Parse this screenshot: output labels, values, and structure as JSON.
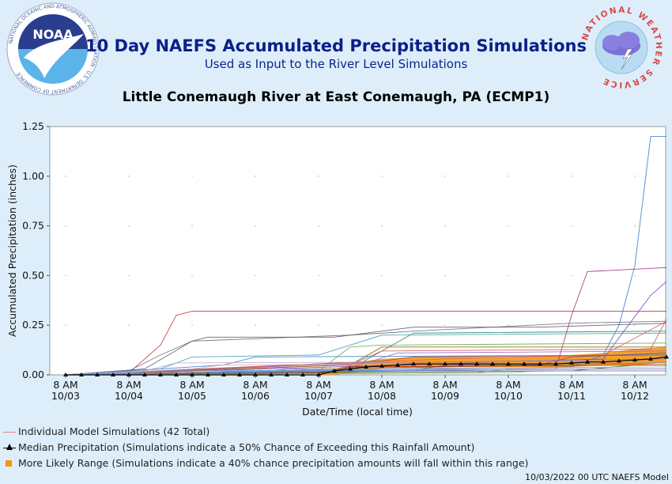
{
  "header": {
    "title": "10 Day NAEFS Accumulated Precipitation Simulations",
    "subtitle": "Used as Input to the River Level Simulations",
    "location": "Little Conemaugh River at East Conemaugh, PA (ECMP1)"
  },
  "logos": {
    "noaa_text": "NOAA",
    "noaa_ring_text": "NATIONAL OCEANIC AND ATMOSPHERIC ADMINISTRATION · U.S. DEPARTMENT OF COMMERCE",
    "nws_ring_text": "NATIONAL WEATHER SERVICE"
  },
  "legend": {
    "individual": "Individual Model Simulations (42 Total)",
    "median": "Median Precipitation (Simulations indicate a 50% Chance of Exceeding this Rainfall Amount)",
    "range": "More Likely Range (Simulations indicate a 40% chance precipitation amounts will fall within this range)"
  },
  "footer": "10/03/2022 00 UTC NAEFS Model",
  "colors": {
    "background": "#ddeefa",
    "title": "#0b1f8a",
    "range_fill": "#f5960f",
    "median": "#000000",
    "individual_legend": "#e08a8a"
  },
  "chart_data": {
    "type": "line",
    "xlabel": "Date/Time (local time)",
    "ylabel": "Accumulated Precipitation (inches)",
    "ylim": [
      0,
      1.25
    ],
    "yticks": [
      0.0,
      0.25,
      0.5,
      0.75,
      1.0,
      1.25
    ],
    "ytick_labels": [
      "0.00",
      "0.25",
      "0.50",
      "0.75",
      "1.00",
      "1.25"
    ],
    "xlim": [
      0,
      9.5
    ],
    "xticks": [
      0,
      1,
      2,
      3,
      4,
      5,
      6,
      7,
      8,
      9
    ],
    "xtick_labels": [
      [
        "8 AM",
        "10/03"
      ],
      [
        "8 AM",
        "10/04"
      ],
      [
        "8 AM",
        "10/05"
      ],
      [
        "8 AM",
        "10/06"
      ],
      [
        "8 AM",
        "10/07"
      ],
      [
        "8 AM",
        "10/08"
      ],
      [
        "8 AM",
        "10/09"
      ],
      [
        "8 AM",
        "10/10"
      ],
      [
        "8 AM",
        "10/11"
      ],
      [
        "8 AM",
        "10/12"
      ]
    ],
    "grid": "dotted",
    "range_band": {
      "x": [
        4.0,
        4.25,
        4.5,
        4.75,
        5.0,
        5.5,
        6.0,
        6.5,
        7.0,
        7.5,
        8.0,
        8.5,
        9.0,
        9.5
      ],
      "low": [
        0.0,
        0.0,
        0.01,
        0.02,
        0.03,
        0.04,
        0.04,
        0.04,
        0.04,
        0.04,
        0.04,
        0.05,
        0.05,
        0.06
      ],
      "high": [
        0.01,
        0.03,
        0.05,
        0.07,
        0.08,
        0.09,
        0.09,
        0.09,
        0.09,
        0.09,
        0.1,
        0.11,
        0.13,
        0.14
      ]
    },
    "median": {
      "x": [
        0,
        0.25,
        0.5,
        0.75,
        1.0,
        1.25,
        1.5,
        1.75,
        2.0,
        2.25,
        2.5,
        2.75,
        3.0,
        3.25,
        3.5,
        3.75,
        4.0,
        4.25,
        4.5,
        4.75,
        5.0,
        5.25,
        5.5,
        5.75,
        6.0,
        6.25,
        6.5,
        6.75,
        7.0,
        7.25,
        7.5,
        7.75,
        8.0,
        8.25,
        8.5,
        8.75,
        9.0,
        9.25,
        9.5
      ],
      "y": [
        0,
        0,
        0,
        0,
        0,
        0,
        0,
        0,
        0,
        0,
        0,
        0,
        0,
        0,
        0,
        0,
        0.0,
        0.02,
        0.03,
        0.04,
        0.045,
        0.05,
        0.055,
        0.055,
        0.055,
        0.055,
        0.055,
        0.055,
        0.055,
        0.055,
        0.055,
        0.055,
        0.06,
        0.065,
        0.065,
        0.07,
        0.075,
        0.08,
        0.09
      ]
    },
    "series": [
      {
        "color": "#c23a3a",
        "x": [
          0,
          1.0,
          1.5,
          1.75,
          2.0,
          9.5
        ],
        "y": [
          0,
          0.01,
          0.15,
          0.3,
          0.32,
          0.32
        ]
      },
      {
        "color": "#3c78d8",
        "x": [
          0,
          8.0,
          8.5,
          8.75,
          9.0,
          9.25,
          9.5
        ],
        "y": [
          0,
          0.04,
          0.1,
          0.25,
          0.55,
          1.2,
          1.2
        ]
      },
      {
        "color": "#a03080",
        "x": [
          0,
          7.75,
          8.0,
          8.25,
          9.5
        ],
        "y": [
          0,
          0.03,
          0.3,
          0.52,
          0.54
        ]
      },
      {
        "color": "#8040c0",
        "x": [
          0,
          8.5,
          9.25,
          9.5
        ],
        "y": [
          0,
          0.08,
          0.4,
          0.47
        ]
      },
      {
        "color": "#707070",
        "x": [
          0,
          1.0,
          1.5,
          2.0,
          4.5,
          5.5,
          8.0,
          9.5
        ],
        "y": [
          0,
          0.02,
          0.1,
          0.17,
          0.2,
          0.22,
          0.26,
          0.27
        ]
      },
      {
        "color": "#555577",
        "x": [
          0,
          1.25,
          2.0,
          2.25,
          4.25,
          5.5,
          7.5,
          9.5
        ],
        "y": [
          0,
          0.03,
          0.17,
          0.19,
          0.19,
          0.24,
          0.24,
          0.26
        ]
      },
      {
        "color": "#6aa84f",
        "x": [
          0,
          4.0,
          4.5,
          5.0,
          9.5
        ],
        "y": [
          0,
          0.02,
          0.14,
          0.15,
          0.16
        ]
      },
      {
        "color": "#2e8b57",
        "x": [
          0,
          4.5,
          5.5,
          9.5
        ],
        "y": [
          0,
          0.03,
          0.21,
          0.22
        ]
      },
      {
        "color": "#d05050",
        "x": [
          0,
          4.5,
          5.0,
          9.25,
          9.5
        ],
        "y": [
          0,
          0.05,
          0.12,
          0.13,
          0.28
        ]
      },
      {
        "color": "#40a0c0",
        "x": [
          0,
          1.5,
          2.0,
          4.0,
          5.0,
          9.5
        ],
        "y": [
          0,
          0.03,
          0.09,
          0.1,
          0.2,
          0.21
        ]
      },
      {
        "color": "#e06666",
        "x": [
          0,
          6.0,
          8.5,
          9.5
        ],
        "y": [
          0,
          0.08,
          0.1,
          0.27
        ]
      },
      {
        "color": "#7f6000",
        "x": [
          0,
          4.5,
          5.0,
          9.5
        ],
        "y": [
          0,
          0.05,
          0.14,
          0.14
        ]
      },
      {
        "color": "#9966cc",
        "x": [
          0,
          4.75,
          5.25,
          9.5
        ],
        "y": [
          0,
          0.06,
          0.11,
          0.12
        ]
      },
      {
        "color": "#cc4125",
        "x": [
          0,
          5.0,
          5.5,
          9.5
        ],
        "y": [
          0,
          0.07,
          0.09,
          0.1
        ]
      },
      {
        "color": "#3d85c6",
        "x": [
          0,
          2.5,
          3.0,
          9.5
        ],
        "y": [
          0,
          0.05,
          0.09,
          0.1
        ]
      },
      {
        "color": "#b4a7d6",
        "x": [
          0,
          1.25,
          1.75,
          9.5
        ],
        "y": [
          0,
          0.02,
          0.06,
          0.07
        ]
      },
      {
        "color": "#8e7cc3",
        "x": [
          0,
          4.25,
          4.75,
          9.5
        ],
        "y": [
          0,
          0.02,
          0.06,
          0.08
        ]
      },
      {
        "color": "#d5a6bd",
        "x": [
          0,
          2.0,
          2.5,
          9.5
        ],
        "y": [
          0,
          0.03,
          0.05,
          0.06
        ]
      },
      {
        "color": "#674ea7",
        "x": [
          0,
          7.5,
          8.0,
          9.5
        ],
        "y": [
          0,
          0.05,
          0.09,
          0.11
        ]
      },
      {
        "color": "#38761d",
        "x": [
          0,
          8.0,
          9.0,
          9.5
        ],
        "y": [
          0,
          0.02,
          0.05,
          0.05
        ]
      },
      {
        "color": "#999999",
        "x": [
          0,
          3.0,
          3.5,
          9.5
        ],
        "y": [
          0,
          0.01,
          0.03,
          0.04
        ]
      },
      {
        "color": "#e69138",
        "x": [
          0,
          4.5,
          5.0,
          9.5
        ],
        "y": [
          0,
          0.03,
          0.06,
          0.07
        ]
      },
      {
        "color": "#45818e",
        "x": [
          0,
          5.5,
          6.0,
          9.5
        ],
        "y": [
          0,
          0.02,
          0.05,
          0.06
        ]
      },
      {
        "color": "#a61c00",
        "x": [
          0,
          4.0,
          4.5,
          9.5
        ],
        "y": [
          0,
          0.01,
          0.04,
          0.05
        ]
      },
      {
        "color": "#6fa8dc",
        "x": [
          0,
          1.0,
          1.5,
          9.5
        ],
        "y": [
          0,
          0.01,
          0.02,
          0.03
        ]
      },
      {
        "color": "#c27ba0",
        "x": [
          0,
          6.5,
          7.0,
          9.5
        ],
        "y": [
          0,
          0.01,
          0.03,
          0.03
        ]
      },
      {
        "color": "#93c47d",
        "x": [
          0,
          7.0,
          7.5,
          9.5
        ],
        "y": [
          0,
          0.01,
          0.02,
          0.02
        ]
      },
      {
        "color": "#4a86e8",
        "x": [
          0,
          2.25,
          2.75,
          9.5
        ],
        "y": [
          0,
          0.01,
          0.02,
          0.02
        ]
      }
    ]
  }
}
